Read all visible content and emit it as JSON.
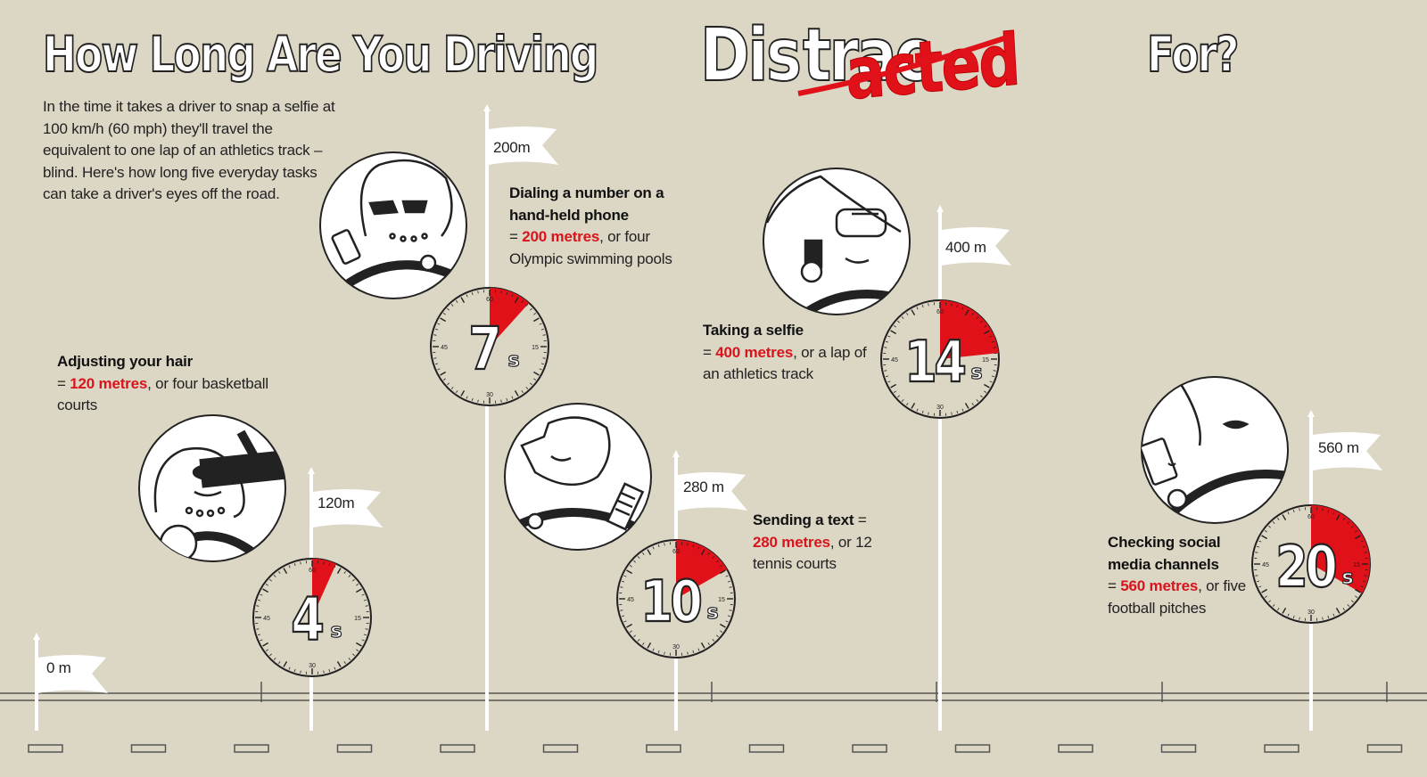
{
  "title": {
    "part1": "How Long Are You Driving",
    "dis": "Dis",
    "struck": "trac",
    "red": "acted",
    "part2": "For?"
  },
  "intro": "In the time it takes a driver to snap a selfie at 100 km/h (60 mph) they'll travel the equivalent to one lap of an athletics track – blind. Here's how long five everyday tasks can take a driver's eyes off the road.",
  "start_flag": "0 m",
  "tasks": [
    {
      "flag": "120m",
      "seconds": "4",
      "unit": "s",
      "fraction": 0.0667,
      "title": "Adjusting your hair",
      "eq": "= ",
      "distance": "120 metres",
      "rest": ", or four basketball courts"
    },
    {
      "flag": "200m",
      "seconds": "7",
      "unit": "s",
      "fraction": 0.1167,
      "title": "Dialing a number on a hand-held phone",
      "eq": "= ",
      "distance": "200 metres",
      "rest": ", or four Olympic swimming pools"
    },
    {
      "flag": "280 m",
      "seconds": "10",
      "unit": "s",
      "fraction": 0.1667,
      "title": "Sending a text",
      "eq": " = ",
      "distance": "280 metres",
      "rest": ", or 12 tennis courts"
    },
    {
      "flag": "400 m",
      "seconds": "14",
      "unit": "s",
      "fraction": 0.2333,
      "title": "Taking a selfie",
      "eq": "= ",
      "distance": "400 metres",
      "rest": ", or a lap of an athletics track"
    },
    {
      "flag": "560 m",
      "seconds": "20",
      "unit": "s",
      "fraction": 0.3333,
      "title": "Checking social media channels",
      "eq": "= ",
      "distance": "560 metres",
      "rest": ", or five football pitches"
    }
  ],
  "dial_ticks": [
    "60",
    "15",
    "30",
    "45"
  ],
  "colors": {
    "background": "#dcd6c5",
    "accent": "#e1111a",
    "ink": "#222222",
    "flag": "#ffffff"
  }
}
